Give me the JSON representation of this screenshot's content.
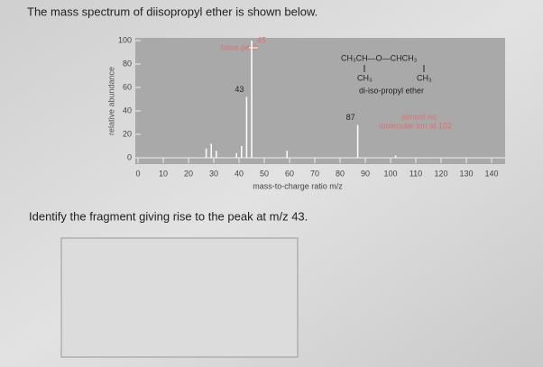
{
  "question": {
    "intro": "The mass spectrum of diisopropyl ether is shown below.",
    "prompt": "Identify the fragment giving rise to the peak at m/z 43."
  },
  "chart_data": {
    "type": "bar",
    "xlabel": "mass-to-charge ratio m/z",
    "ylabel": "relative abundance",
    "x": [
      27,
      29,
      31,
      39,
      41,
      43,
      45,
      59,
      87,
      102
    ],
    "values": [
      8,
      12,
      6,
      4,
      10,
      52,
      100,
      6,
      28,
      2
    ],
    "value_labels": [
      null,
      null,
      null,
      null,
      null,
      "43",
      "45",
      null,
      "87",
      null
    ],
    "color": "#ffffff",
    "xlim": [
      0,
      145
    ],
    "xticks": [
      0,
      10,
      20,
      30,
      40,
      50,
      60,
      70,
      80,
      90,
      100,
      110,
      120,
      130,
      140
    ],
    "ylim": [
      0,
      100
    ],
    "yticks": [
      0,
      20,
      40,
      60,
      80,
      100
    ],
    "annotations": {
      "base_peak": "base peak",
      "formula": "CH₃CH—O—CHCH₃",
      "methyl_left": "CH₃",
      "methyl_right": "CH₃",
      "name": "di-iso-propyl ether",
      "ion_note_1": "almost no",
      "ion_note_2": "molecular ion at 102"
    }
  }
}
